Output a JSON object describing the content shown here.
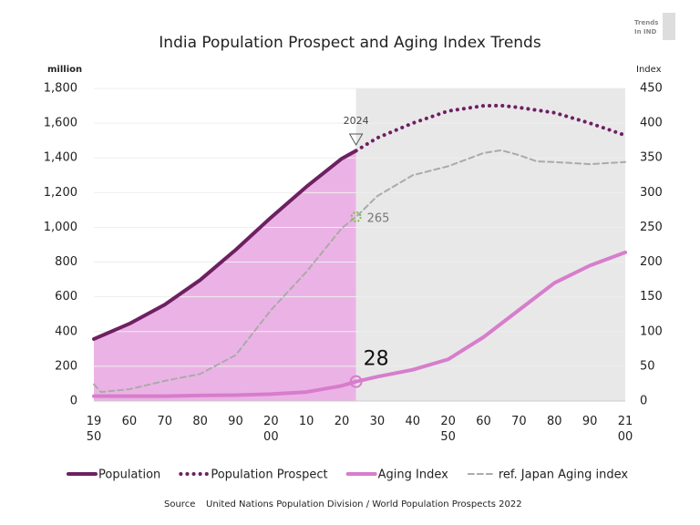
{
  "chart_data": {
    "type": "line",
    "title": "India Population Prospect and Aging Index Trends",
    "y_label": "million",
    "y2_label": "Index",
    "logo": [
      "Trends",
      "In IND"
    ],
    "source_label": "Source",
    "source": "United Nations Population Division / World Population Prospects 2022",
    "xlim": [
      1950,
      2100
    ],
    "xticks": [
      {
        "value": 1950,
        "label": "19\n50"
      },
      {
        "value": 1960,
        "label": "60"
      },
      {
        "value": 1970,
        "label": "70"
      },
      {
        "value": 1980,
        "label": "80"
      },
      {
        "value": 1990,
        "label": "90"
      },
      {
        "value": 2000,
        "label": "20\n00"
      },
      {
        "value": 2010,
        "label": "10"
      },
      {
        "value": 2020,
        "label": "20"
      },
      {
        "value": 2030,
        "label": "30"
      },
      {
        "value": 2040,
        "label": "40"
      },
      {
        "value": 2050,
        "label": "20\n50"
      },
      {
        "value": 2060,
        "label": "60"
      },
      {
        "value": 2070,
        "label": "70"
      },
      {
        "value": 2080,
        "label": "80"
      },
      {
        "value": 2090,
        "label": "90"
      },
      {
        "value": 2100,
        "label": "21\n00"
      }
    ],
    "ylim": [
      0,
      1800
    ],
    "yticks": [
      0,
      200,
      400,
      600,
      800,
      {
        "value": 1000,
        "label": "1,000"
      },
      {
        "value": 1200,
        "label": "1,200"
      },
      {
        "value": 1400,
        "label": "1,400"
      },
      {
        "value": 1600,
        "label": "1,600"
      },
      {
        "value": 1800,
        "label": "1,800"
      }
    ],
    "y2lim": [
      0,
      450
    ],
    "y2ticks": [
      0,
      50,
      100,
      150,
      200,
      250,
      300,
      350,
      400,
      450
    ],
    "grid": true,
    "divider_x": 2024,
    "past_fill": "#ebb3e5",
    "future_fill": "#e8e8e8",
    "series": [
      {
        "name": "Population",
        "color": "#6e2062",
        "dash": "solid",
        "width": 4,
        "x": [
          1950,
          1960,
          1970,
          1980,
          1990,
          2000,
          2010,
          2020,
          2024
        ],
        "values": [
          357,
          445,
          555,
          697,
          870,
          1057,
          1234,
          1396,
          1441
        ]
      },
      {
        "name": "Population Prospect",
        "color": "#6e2062",
        "dash": "dotted",
        "width": 4,
        "x": [
          2024,
          2030,
          2040,
          2050,
          2060,
          2065,
          2070,
          2080,
          2090,
          2100
        ],
        "values": [
          1441,
          1515,
          1600,
          1670,
          1700,
          1701,
          1690,
          1660,
          1600,
          1530
        ]
      },
      {
        "name": "Aging Index",
        "color": "#d77dcc",
        "dash": "solid",
        "width": 4,
        "axis": "y2",
        "x": [
          1950,
          1960,
          1970,
          1980,
          1990,
          2000,
          2010,
          2020,
          2024,
          2030,
          2040,
          2050,
          2060,
          2070,
          2080,
          2090,
          2100
        ],
        "values": [
          7,
          7,
          7,
          8,
          8.5,
          10,
          13,
          22,
          28,
          35,
          45,
          60,
          92,
          131,
          170,
          195,
          214
        ]
      },
      {
        "name": "ref. Japan Aging index",
        "color": "#aaaaaa",
        "dash": "dashed",
        "width": 2,
        "axis": "y2",
        "x": [
          1950,
          1952,
          1960,
          1970,
          1980,
          1990,
          2000,
          2010,
          2020,
          2024,
          2030,
          2040,
          2050,
          2060,
          2065,
          2070,
          2075,
          2080,
          2090,
          2100
        ],
        "values": [
          24,
          13,
          17,
          29,
          39,
          66,
          131,
          186,
          249,
          265,
          295,
          325,
          338,
          357,
          361,
          354,
          345,
          344,
          341,
          344
        ]
      }
    ],
    "markers": [
      {
        "x": 2024,
        "y": 265,
        "axis": "y2",
        "color": "#7cc04b"
      },
      {
        "x": 2024,
        "y": 28,
        "axis": "y2",
        "color": "#d77dcc"
      }
    ]
  }
}
